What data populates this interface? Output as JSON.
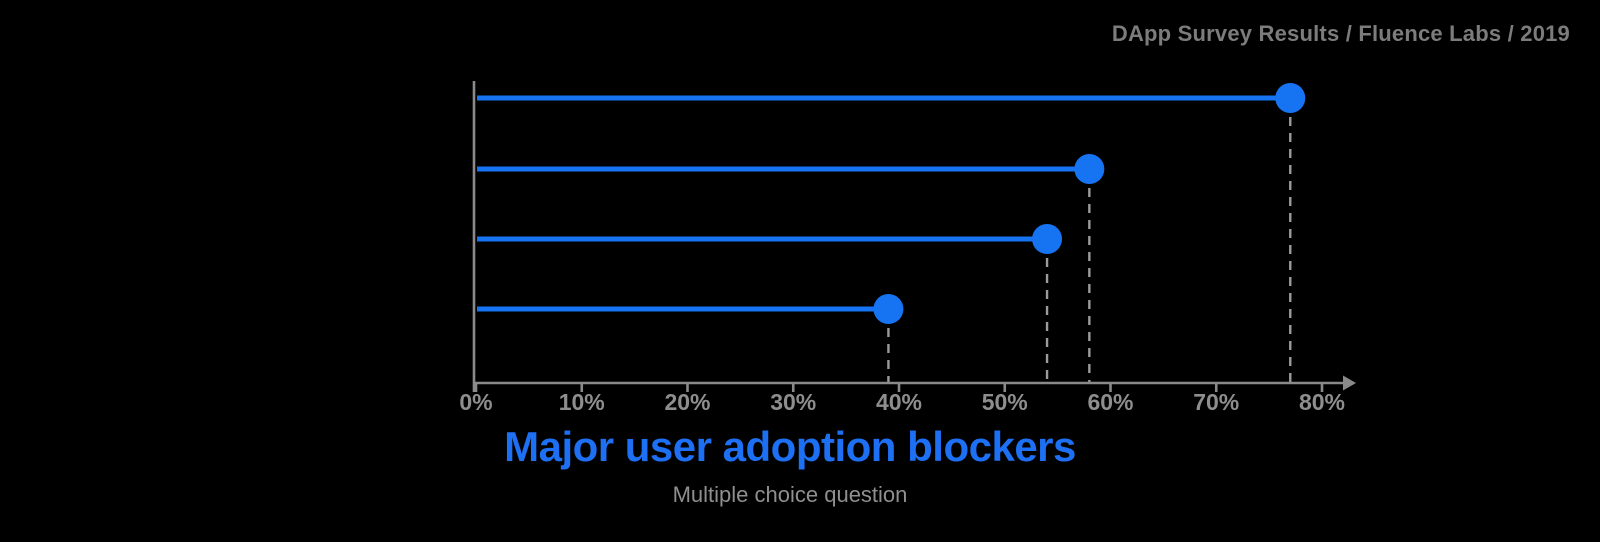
{
  "colors": {
    "background": "#000000",
    "accent_blue": "#1673f2",
    "title_blue": "#1d70f3",
    "axis_gray": "#8a8a8a",
    "tick_label_gray": "#8e8e8e",
    "dashed_guide_gray": "#9b9b9b",
    "subtitle_gray": "#8f8f8f",
    "attribution_gray": "#7c7c7c"
  },
  "chart_data": {
    "type": "bar",
    "variant": "lollipop-horizontal",
    "title": "Major user adoption blockers",
    "subtitle": "Multiple choice question",
    "source": "DApp Survey Results / Fluence Labs / 2019",
    "categories": [
      "",
      "",
      "",
      ""
    ],
    "values": [
      77,
      58,
      54,
      39
    ],
    "unit": "%",
    "x_ticks": [
      "0%",
      "10%",
      "20%",
      "30%",
      "40%",
      "50%",
      "60%",
      "70%",
      "80%"
    ],
    "xlim": [
      0,
      80
    ],
    "grid": "dashed-guides-from-points-only",
    "legend": "none",
    "orientation": "horizontal"
  }
}
